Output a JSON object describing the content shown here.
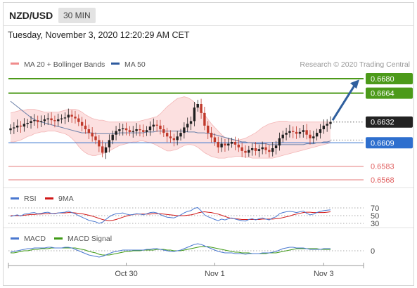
{
  "header": {
    "pair": "NZD/USD",
    "timeframe": "30 MIN"
  },
  "timestamp": "Tuesday, November 3, 2020 12:20:29 AM CET",
  "legend": {
    "bb": "MA 20 + Bollinger Bands",
    "ma50": "MA 50",
    "credit": "Research © 2020 Trading Central"
  },
  "rsi_legend": {
    "rsi": "RSI",
    "ma": "9MA"
  },
  "macd_legend": {
    "macd": "MACD",
    "signal": "MACD Signal"
  },
  "colors": {
    "up": "#1f1f1f",
    "down": "#c0392b",
    "resistance": "#4c9a1a",
    "support": "#2e6fce",
    "target": "#e06060",
    "arrow": "#2f5f9e",
    "band": "#fbd6d6",
    "ma50": "#6a7fa8"
  },
  "chart_data": [
    {
      "type": "candlestick",
      "title": "NZD/USD 30 MIN",
      "x_ticks": [
        "Oct 30",
        "Nov 1",
        "Nov 3"
      ],
      "ylim": [
        0.656,
        0.6685
      ],
      "levels": [
        {
          "label": "0.6680",
          "value": 0.668,
          "kind": "resistance"
        },
        {
          "label": "0.6664",
          "value": 0.6664,
          "kind": "resistance"
        },
        {
          "label": "0.6632",
          "value": 0.6632,
          "kind": "last"
        },
        {
          "label": "0.6609",
          "value": 0.6609,
          "kind": "pivot"
        },
        {
          "label": "0.6583",
          "value": 0.6583,
          "kind": "support"
        },
        {
          "label": "0.6568",
          "value": 0.6568,
          "kind": "support"
        }
      ],
      "close": [
        0.6625,
        0.6626,
        0.6628,
        0.6627,
        0.663,
        0.6631,
        0.6633,
        0.6634,
        0.6632,
        0.6633,
        0.6635,
        0.6636,
        0.6634,
        0.6633,
        0.6635,
        0.6636,
        0.6637,
        0.664,
        0.6638,
        0.6636,
        0.6632,
        0.6628,
        0.6624,
        0.662,
        0.6616,
        0.6612,
        0.6605,
        0.6598,
        0.6604,
        0.6612,
        0.6618,
        0.6622,
        0.6624,
        0.6625,
        0.6623,
        0.6621,
        0.6622,
        0.6624,
        0.6623,
        0.6621,
        0.6623,
        0.6627,
        0.6629,
        0.6628,
        0.6624,
        0.662,
        0.6616,
        0.6614,
        0.6612,
        0.6616,
        0.662,
        0.6626,
        0.663,
        0.6633,
        0.6648,
        0.6652,
        0.6642,
        0.6628,
        0.662,
        0.6615,
        0.661,
        0.6604,
        0.6608,
        0.6606,
        0.6608,
        0.661,
        0.6607,
        0.6604,
        0.66,
        0.6598,
        0.6601,
        0.6603,
        0.66,
        0.6602,
        0.6604,
        0.6601,
        0.6599,
        0.6603,
        0.6606,
        0.6614,
        0.6618,
        0.662,
        0.6622,
        0.6621,
        0.6619,
        0.6621,
        0.6623,
        0.6618,
        0.6614,
        0.6616,
        0.662,
        0.6624,
        0.6628,
        0.663,
        0.6632
      ],
      "ma50": [
        0.6655,
        0.6652,
        0.6649,
        0.6646,
        0.6643,
        0.664,
        0.6637,
        0.6635,
        0.6633,
        0.6632,
        0.6631,
        0.663,
        0.6629,
        0.6628,
        0.6627,
        0.6626,
        0.6625,
        0.6624,
        0.6623,
        0.6622,
        0.6621,
        0.662,
        0.662,
        0.662,
        0.662,
        0.6619,
        0.6619,
        0.6619,
        0.6619,
        0.6619,
        0.6619,
        0.6619,
        0.662,
        0.662,
        0.662,
        0.662,
        0.662,
        0.662,
        0.662,
        0.662,
        0.6621,
        0.6621,
        0.6621,
        0.6622,
        0.6622,
        0.6622,
        0.6622,
        0.6622,
        0.6622,
        0.6622,
        0.6622,
        0.6622,
        0.6621,
        0.6621,
        0.6621,
        0.662,
        0.662,
        0.662,
        0.6619,
        0.6619,
        0.6618,
        0.6617,
        0.6616,
        0.6615,
        0.6614,
        0.6613,
        0.6612,
        0.6611,
        0.661,
        0.661,
        0.6609,
        0.6609,
        0.6608,
        0.6608,
        0.6608,
        0.6608,
        0.6607,
        0.6607,
        0.6607,
        0.6607,
        0.6607,
        0.6607,
        0.6607,
        0.6607,
        0.6607,
        0.6607,
        0.6607,
        0.6608,
        0.6608,
        0.6608,
        0.6609,
        0.6609,
        0.661,
        0.661,
        0.6611
      ],
      "bb_upper": [
        0.6642,
        0.6643,
        0.6644,
        0.6645,
        0.6645,
        0.6646,
        0.6646,
        0.6646,
        0.6645,
        0.6644,
        0.6643,
        0.6643,
        0.6643,
        0.6643,
        0.6643,
        0.6644,
        0.6645,
        0.6646,
        0.6646,
        0.6646,
        0.6645,
        0.6643,
        0.664,
        0.6638,
        0.6636,
        0.6635,
        0.6634,
        0.6634,
        0.6633,
        0.6632,
        0.6632,
        0.6632,
        0.6632,
        0.6632,
        0.6632,
        0.6632,
        0.6632,
        0.6632,
        0.6633,
        0.6634,
        0.6635,
        0.6636,
        0.6637,
        0.6638,
        0.6641,
        0.6645,
        0.6649,
        0.6652,
        0.6655,
        0.6658,
        0.6659,
        0.666,
        0.6659,
        0.6657,
        0.6654,
        0.665,
        0.6645,
        0.664,
        0.6635,
        0.663,
        0.6626,
        0.6622,
        0.6618,
        0.6615,
        0.6613,
        0.6612,
        0.6612,
        0.6612,
        0.6613,
        0.6614,
        0.6616,
        0.6618,
        0.662,
        0.6623,
        0.6626,
        0.6628,
        0.663,
        0.6631,
        0.6632,
        0.6633,
        0.6633,
        0.6633,
        0.6632,
        0.6632,
        0.6632,
        0.6632,
        0.6632,
        0.6632,
        0.6632,
        0.6632,
        0.6632,
        0.6632,
        0.6632,
        0.6632,
        0.6632
      ],
      "bb_lower": [
        0.661,
        0.661,
        0.6611,
        0.6612,
        0.6614,
        0.6616,
        0.6617,
        0.6619,
        0.662,
        0.6621,
        0.6621,
        0.6622,
        0.6622,
        0.6622,
        0.6621,
        0.662,
        0.6619,
        0.6617,
        0.6614,
        0.661,
        0.6605,
        0.6601,
        0.6598,
        0.6596,
        0.6595,
        0.6595,
        0.6596,
        0.6597,
        0.6598,
        0.66,
        0.6602,
        0.6604,
        0.6606,
        0.6607,
        0.6608,
        0.6609,
        0.661,
        0.661,
        0.6611,
        0.6611,
        0.661,
        0.6609,
        0.6608,
        0.6606,
        0.6604,
        0.6602,
        0.66,
        0.66,
        0.6601,
        0.6602,
        0.6604,
        0.6606,
        0.6607,
        0.6607,
        0.6606,
        0.6604,
        0.6601,
        0.6598,
        0.6596,
        0.6594,
        0.6593,
        0.6592,
        0.6592,
        0.6592,
        0.6593,
        0.6593,
        0.6594,
        0.6594,
        0.6594,
        0.6593,
        0.6593,
        0.6592,
        0.6592,
        0.6592,
        0.6592,
        0.6592,
        0.6592,
        0.6592,
        0.6593,
        0.6594,
        0.6595,
        0.6596,
        0.6597,
        0.6598,
        0.6599,
        0.66,
        0.6601,
        0.6602,
        0.6603,
        0.6604,
        0.6605,
        0.6606,
        0.6607,
        0.6608,
        0.6609
      ]
    },
    {
      "type": "line",
      "title": "RSI",
      "y_ticks": [
        "70",
        "50",
        "30"
      ],
      "ylim": [
        30,
        70
      ],
      "series": [
        {
          "name": "RSI",
          "values": [
            48,
            50,
            52,
            49,
            54,
            55,
            57,
            58,
            55,
            56,
            58,
            59,
            56,
            55,
            57,
            58,
            59,
            62,
            58,
            55,
            50,
            46,
            42,
            38,
            36,
            34,
            30,
            33,
            40,
            47,
            52,
            55,
            56,
            57,
            54,
            52,
            53,
            55,
            54,
            52,
            55,
            58,
            59,
            57,
            53,
            49,
            46,
            45,
            44,
            48,
            52,
            57,
            61,
            63,
            69,
            71,
            62,
            52,
            47,
            44,
            40,
            37,
            41,
            39,
            42,
            44,
            41,
            39,
            37,
            36,
            40,
            42,
            39,
            42,
            44,
            41,
            39,
            44,
            47,
            55,
            58,
            60,
            61,
            60,
            58,
            60,
            62,
            56,
            52,
            54,
            58,
            61,
            63,
            64,
            65
          ]
        },
        {
          "name": "9MA",
          "values": [
            50,
            50,
            50,
            50,
            51,
            52,
            53,
            53,
            54,
            54,
            55,
            55,
            56,
            56,
            57,
            57,
            57,
            58,
            58,
            57,
            56,
            55,
            53,
            51,
            49,
            46,
            43,
            40,
            38,
            37,
            38,
            40,
            43,
            46,
            49,
            51,
            53,
            54,
            54,
            54,
            54,
            54,
            55,
            55,
            55,
            54,
            53,
            52,
            51,
            50,
            50,
            50,
            51,
            52,
            54,
            57,
            59,
            60,
            59,
            58,
            56,
            54,
            51,
            48,
            45,
            43,
            42,
            41,
            40,
            40,
            40,
            40,
            40,
            40,
            41,
            41,
            41,
            41,
            42,
            43,
            45,
            47,
            49,
            52,
            54,
            56,
            58,
            59,
            59,
            58,
            58,
            58,
            58,
            59,
            60
          ]
        }
      ]
    },
    {
      "type": "line",
      "title": "MACD",
      "y_ticks": [
        "0"
      ],
      "ylim": [
        -0.0012,
        0.0012
      ],
      "series": [
        {
          "name": "MACD",
          "values": [
            -0.0002,
            -0.0001,
            0.0,
            0.0001,
            0.0002,
            0.0003,
            0.0003,
            0.0004,
            0.0004,
            0.0004,
            0.0004,
            0.0005,
            0.0005,
            0.0004,
            0.0004,
            0.0004,
            0.0005,
            0.0005,
            0.0004,
            0.0002,
            0.0,
            -0.0002,
            -0.0004,
            -0.0006,
            -0.0007,
            -0.0008,
            -0.0009,
            -0.0008,
            -0.0006,
            -0.0004,
            -0.0002,
            -0.0001,
            0.0,
            0.0001,
            0.0001,
            0.0001,
            0.0001,
            0.0001,
            0.0001,
            0.0001,
            0.0002,
            0.0002,
            0.0003,
            0.0003,
            0.0002,
            0.0001,
            0.0,
            -0.0001,
            -0.0001,
            0.0,
            0.0001,
            0.0003,
            0.0005,
            0.0007,
            0.0009,
            0.001,
            0.0009,
            0.0007,
            0.0005,
            0.0003,
            0.0001,
            -0.0001,
            -0.0002,
            -0.0003,
            -0.0003,
            -0.0003,
            -0.0004,
            -0.0004,
            -0.0004,
            -0.0005,
            -0.0004,
            -0.0004,
            -0.0004,
            -0.0004,
            -0.0003,
            -0.0003,
            -0.0003,
            -0.0002,
            -0.0001,
            0.0001,
            0.0003,
            0.0004,
            0.0005,
            0.0005,
            0.0004,
            0.0004,
            0.0004,
            0.0003,
            0.0002,
            0.0002,
            0.0002,
            0.0002,
            0.0003,
            0.0003,
            0.0003
          ]
        },
        {
          "name": "MACD Signal",
          "values": [
            -0.0003,
            -0.0003,
            -0.0002,
            -0.0001,
            0.0,
            0.0,
            0.0001,
            0.0002,
            0.0002,
            0.0003,
            0.0003,
            0.0003,
            0.0004,
            0.0004,
            0.0004,
            0.0004,
            0.0004,
            0.0004,
            0.0004,
            0.0004,
            0.0003,
            0.0002,
            0.0001,
            -0.0001,
            -0.0002,
            -0.0003,
            -0.0005,
            -0.0006,
            -0.0006,
            -0.0006,
            -0.0005,
            -0.0004,
            -0.0003,
            -0.0002,
            -0.0001,
            -0.0001,
            0.0,
            0.0,
            0.0,
            0.0001,
            0.0001,
            0.0001,
            0.0001,
            0.0002,
            0.0002,
            0.0002,
            0.0001,
            0.0001,
            0.0,
            0.0,
            0.0,
            0.0001,
            0.0002,
            0.0003,
            0.0004,
            0.0005,
            0.0006,
            0.0006,
            0.0006,
            0.0005,
            0.0004,
            0.0003,
            0.0002,
            0.0001,
            0.0,
            -0.0001,
            -0.0002,
            -0.0002,
            -0.0003,
            -0.0003,
            -0.0003,
            -0.0004,
            -0.0004,
            -0.0004,
            -0.0004,
            -0.0004,
            -0.0003,
            -0.0003,
            -0.0003,
            -0.0002,
            -0.0001,
            0.0,
            0.0001,
            0.0002,
            0.0003,
            0.0003,
            0.0003,
            0.0003,
            0.0003,
            0.0003,
            0.0003,
            0.0002,
            0.0002,
            0.0002,
            0.0002
          ]
        }
      ]
    }
  ]
}
